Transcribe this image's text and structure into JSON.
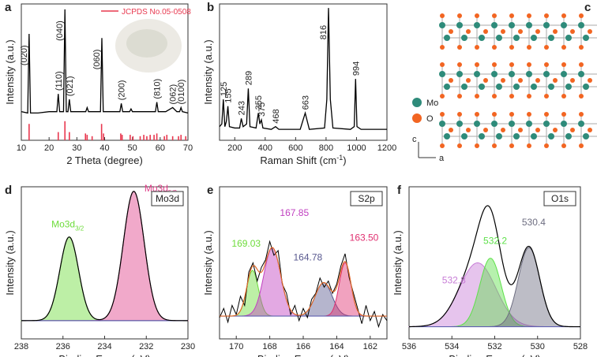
{
  "chart_data": [
    {
      "type": "line",
      "panel": "a",
      "xlabel": "2 Theta (degree)",
      "ylabel": "Intensity (a.u.)",
      "xlim": [
        10,
        70
      ],
      "xticks": [
        10,
        20,
        30,
        40,
        50,
        60,
        70
      ],
      "ylim": [
        0,
        100
      ],
      "x": [
        10,
        12.3,
        12.8,
        13.3,
        16,
        20,
        22.8,
        23.3,
        23.8,
        25.2,
        25.7,
        26.2,
        26.8,
        27.3,
        27.8,
        30,
        33.2,
        33.7,
        34.2,
        38.5,
        39,
        39.5,
        42,
        45.5,
        46,
        46.5,
        49,
        49.5,
        50,
        55,
        58.3,
        58.8,
        59.3,
        62,
        64.5,
        66,
        67,
        67.5,
        68,
        70
      ],
      "series": [
        {
          "color": "#000000",
          "values": [
            21,
            20,
            78,
            20,
            20,
            21,
            21,
            34,
            21,
            21,
            96,
            21,
            21,
            30,
            21,
            21,
            21,
            24,
            21,
            21,
            75,
            21,
            21,
            21,
            27,
            21,
            21,
            23,
            21,
            21,
            21,
            28,
            21,
            21,
            24,
            21,
            21,
            24,
            21,
            20
          ]
        }
      ],
      "reference": {
        "name": "JCPDS No.05-0508",
        "color": "#e8384f",
        "x": [
          12.8,
          23.3,
          25.7,
          27.3,
          33.1,
          33.7,
          35.5,
          38.9,
          39.6,
          45.8,
          46.3,
          49.2,
          50.2,
          52.8,
          54.1,
          55.2,
          56.4,
          57.8,
          58.8,
          61.5,
          62.4,
          64.5,
          66.6,
          67.5,
          69.2
        ],
        "values": [
          12,
          6,
          14,
          6,
          5,
          4,
          3,
          12,
          5,
          5,
          4,
          4,
          3,
          3,
          4,
          3,
          4,
          4,
          5,
          3,
          4,
          3,
          3,
          4,
          3
        ]
      },
      "peaks": [
        {
          "label": "(020)",
          "x": 12.8
        },
        {
          "label": "(110)",
          "x": 23.3
        },
        {
          "label": "(040)",
          "x": 25.7
        },
        {
          "label": "(021)",
          "x": 27.3
        },
        {
          "label": "(060)",
          "x": 39
        },
        {
          "label": "(200)",
          "x": 46
        },
        {
          "label": "(810)",
          "x": 58.8
        },
        {
          "label": "(062)",
          "x": 64.5
        },
        {
          "label": "(0100)",
          "x": 67.5
        }
      ]
    },
    {
      "type": "line",
      "panel": "b",
      "xlabel": {
        "text": "Raman Shift (cm",
        "sup": "-1",
        "after": ")"
      },
      "ylabel": "Intensity (a.u.)",
      "xlim": [
        100,
        1200
      ],
      "xticks": [
        200,
        400,
        600,
        800,
        1000,
        1200
      ],
      "ylim": [
        0,
        100
      ],
      "x": [
        100,
        115,
        125,
        135,
        145,
        155,
        165,
        200,
        232,
        243,
        255,
        278,
        289,
        300,
        340,
        355,
        365,
        375,
        385,
        440,
        468,
        490,
        630,
        663,
        690,
        790,
        805,
        816,
        828,
        845,
        960,
        985,
        994,
        1003,
        1030,
        1200
      ],
      "series": [
        {
          "color": "#000000",
          "values": [
            10,
            12,
            30,
            10,
            14,
            25,
            10,
            9,
            9,
            16,
            10,
            12,
            38,
            10,
            9,
            20,
            12,
            15,
            9,
            8,
            10,
            8,
            8,
            20,
            8,
            9,
            30,
            97,
            30,
            9,
            8,
            10,
            45,
            10,
            8,
            8
          ]
        }
      ],
      "peaks": [
        125,
        155,
        243,
        289,
        355,
        375,
        468,
        663,
        816,
        994
      ]
    },
    {
      "type": "structure",
      "panel": "c",
      "legend": [
        {
          "name": "Mo",
          "color": "#2e8b7a"
        },
        {
          "name": "O",
          "color": "#f26522"
        }
      ],
      "axes": [
        "c",
        "a"
      ]
    },
    {
      "type": "xps",
      "panel": "d",
      "tag": "Mo3d",
      "xlabel": "Binding Energy (eV)",
      "ylabel": "Intensity (a.u.)",
      "xlim": [
        238,
        230
      ],
      "xticks": [
        238,
        236,
        234,
        232,
        230
      ],
      "ylim": [
        0,
        100
      ],
      "background": 12,
      "components": [
        {
          "label": "Mo3d",
          "sub": "3/2",
          "center": 235.7,
          "height": 55,
          "sigma": 0.45,
          "color": "#6ddc3a"
        },
        {
          "label": "Mo3d",
          "sub": "5/2",
          "center": 232.6,
          "height": 85,
          "sigma": 0.5,
          "color": "#e0408a"
        }
      ]
    },
    {
      "type": "xps",
      "panel": "e",
      "tag": "S2p",
      "xlabel": "Binding Energy (eV)",
      "ylabel": "Intensity (a.u.)",
      "xlim": [
        171,
        161
      ],
      "xticks": [
        170,
        168,
        166,
        164,
        162
      ],
      "ylim": [
        0,
        100
      ],
      "background": 15,
      "components": [
        {
          "label": "169.03",
          "center": 169.03,
          "height": 30,
          "sigma": 0.35,
          "color": "#6ddc3a"
        },
        {
          "label": "167.85",
          "center": 167.85,
          "height": 45,
          "sigma": 0.5,
          "color": "#c040c0"
        },
        {
          "label": "164.78",
          "center": 164.78,
          "height": 22,
          "sigma": 0.5,
          "color": "#5a5a90"
        },
        {
          "label": "163.50",
          "center": 163.5,
          "height": 35,
          "sigma": 0.35,
          "color": "#e03070"
        }
      ],
      "x": [
        171,
        170.75,
        170.5,
        170.25,
        170,
        169.75,
        169.5,
        169.25,
        169,
        168.75,
        168.5,
        168.25,
        168,
        167.75,
        167.5,
        167.25,
        167,
        166.75,
        166.5,
        166.25,
        166,
        165.75,
        165.5,
        165.25,
        165,
        164.75,
        164.5,
        164.25,
        164,
        163.75,
        163.5,
        163.25,
        163,
        162.75,
        162.5,
        162.25,
        162,
        161.75,
        161.5,
        161.25,
        161
      ],
      "measured": [
        14,
        20,
        11,
        22,
        16,
        28,
        22,
        44,
        50,
        38,
        47,
        52,
        64,
        55,
        58,
        36,
        30,
        16,
        22,
        12,
        20,
        14,
        26,
        30,
        40,
        34,
        38,
        30,
        36,
        48,
        56,
        40,
        30,
        20,
        10,
        22,
        12,
        18,
        8,
        16,
        12
      ]
    },
    {
      "type": "xps",
      "panel": "f",
      "tag": "O1s",
      "xlabel": "Binding Energy (eV)",
      "ylabel": "Intensity (a.u.)",
      "xlim": [
        536,
        528
      ],
      "xticks": [
        536,
        534,
        532,
        530,
        528
      ],
      "ylim": [
        0,
        100
      ],
      "background": 8,
      "components": [
        {
          "label": "532.8",
          "center": 532.8,
          "height": 42,
          "sigma": 0.85,
          "color": "#c77cd6"
        },
        {
          "label": "532.2",
          "center": 532.2,
          "height": 45,
          "sigma": 0.5,
          "color": "#5ee04a"
        },
        {
          "label": "530.4",
          "center": 530.4,
          "height": 52,
          "sigma": 0.5,
          "color": "#6d6d80"
        }
      ]
    }
  ]
}
